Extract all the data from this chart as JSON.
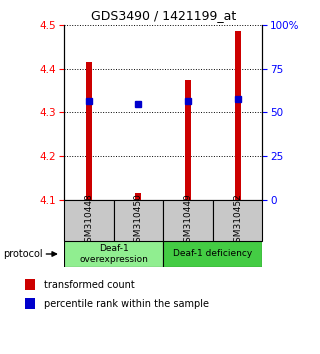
{
  "title": "GDS3490 / 1421199_at",
  "samples": [
    "GSM310448",
    "GSM310450",
    "GSM310449",
    "GSM310452"
  ],
  "red_values": [
    4.415,
    4.115,
    4.375,
    4.485
  ],
  "blue_values": [
    4.325,
    4.32,
    4.325,
    4.33
  ],
  "ymin": 4.1,
  "ymax": 4.5,
  "yticks_left": [
    4.1,
    4.2,
    4.3,
    4.4,
    4.5
  ],
  "yticks_right": [
    0,
    25,
    50,
    75,
    100
  ],
  "bar_width": 0.12,
  "red_color": "#CC0000",
  "blue_color": "#0000CC",
  "label_bg": "#C8C8C8",
  "group1_color": "#90EE90",
  "group2_color": "#44CC44",
  "legend_red_label": "transformed count",
  "legend_blue_label": "percentile rank within the sample",
  "protocol_label": "protocol"
}
